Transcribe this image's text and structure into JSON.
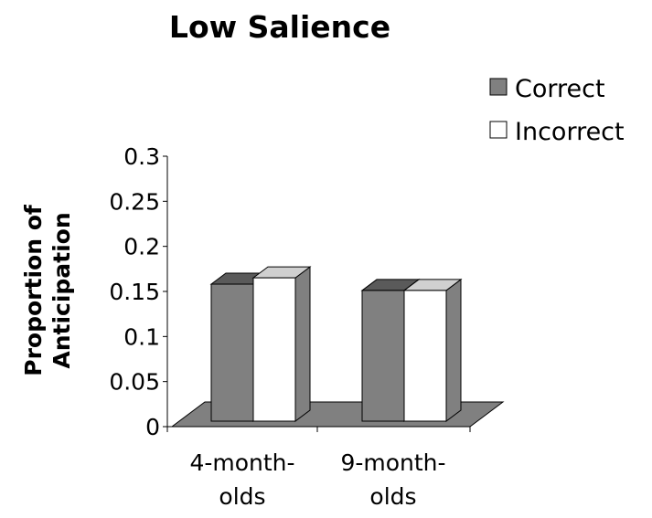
{
  "chart_data": {
    "type": "bar",
    "title": "Low Salience",
    "xlabel": "",
    "ylabel_lines": [
      "Proportion of",
      "Anticipation"
    ],
    "categories": [
      {
        "lines": [
          "4-month-",
          "olds"
        ]
      },
      {
        "lines": [
          "9-month-",
          "olds"
        ]
      }
    ],
    "series": [
      {
        "name": "Correct",
        "values": [
          0.152,
          0.145
        ],
        "color": "#808080",
        "top_color": "#5a5a5a",
        "side_color": "#555555"
      },
      {
        "name": "Incorrect",
        "values": [
          0.159,
          0.145
        ],
        "color": "#ffffff",
        "top_color": "#d0d0d0",
        "side_color": "#808080"
      }
    ],
    "ylim": [
      0,
      0.3
    ],
    "yticks": [
      "0",
      "0.05",
      "0.1",
      "0.15",
      "0.2",
      "0.25",
      "0.3"
    ],
    "legend_position": "top-right",
    "floor_color": "#808080",
    "three_d": true
  }
}
